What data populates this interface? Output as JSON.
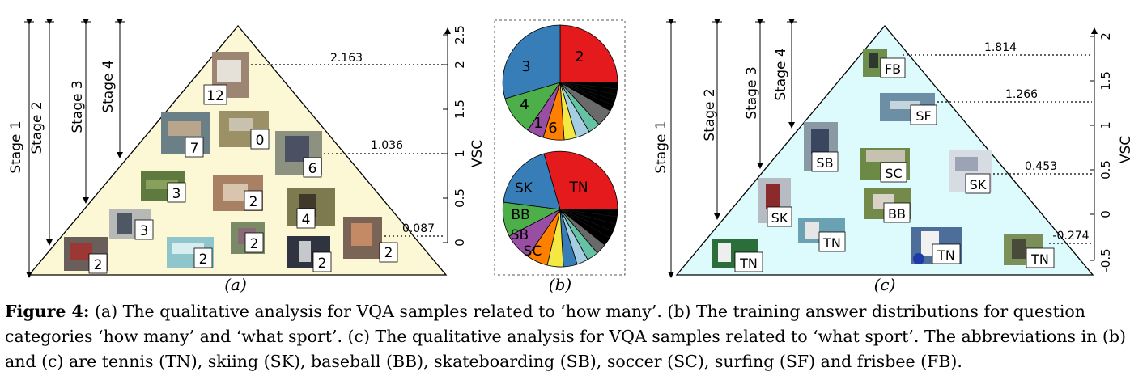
{
  "panel_a": {
    "label": "(a)",
    "stages": [
      "Stage 1",
      "Stage 2",
      "Stage 3",
      "Stage 4"
    ],
    "axis_label": "VSC",
    "ticks": [
      "0",
      "0.5",
      "1",
      "1.5",
      "2",
      "2.5"
    ],
    "thresholds": [
      "2.163",
      "1.036",
      "0.087"
    ],
    "samples": [
      "12",
      "7",
      "0",
      "6",
      "3",
      "2",
      "4",
      "2",
      "3",
      "2",
      "2",
      "2",
      "2"
    ]
  },
  "panel_b": {
    "label": "(b)",
    "pie1_labels": [
      "2",
      "3",
      "4",
      "1",
      "6"
    ],
    "pie2_labels": [
      "TN",
      "SK",
      "BB",
      "SB",
      "SC"
    ]
  },
  "panel_c": {
    "label": "(c)",
    "stages": [
      "Stage 1",
      "Stage 2",
      "Stage 3",
      "Stage 4"
    ],
    "axis_label": "VSC",
    "ticks": [
      "-0.5",
      "0",
      "0.5",
      "1",
      "1.5",
      "2"
    ],
    "thresholds": [
      "1.814",
      "1.266",
      "0.453",
      "-0.274"
    ],
    "samples": [
      "FB",
      "SF",
      "SB",
      "SC",
      "SK",
      "BB",
      "SK",
      "TN",
      "TN",
      "TN",
      "TN"
    ]
  },
  "caption": {
    "label": "Figure 4:",
    "text": "(a) The qualitative analysis for VQA samples related to ‘how many’. (b) The training answer distributions for question categories ‘how many’ and ‘what sport’. (c) The qualitative analysis for VQA samples related to ‘what sport’. The abbreviations in (b) and (c) are tennis (TN), skiing (SK), baseball (BB), skateboarding (SB), soccer (SC), surfing (SF) and frisbee (FB)."
  },
  "colors": {
    "yellow_fill": "#fcf8d6",
    "cyan_fill": "#ddfbfd"
  }
}
